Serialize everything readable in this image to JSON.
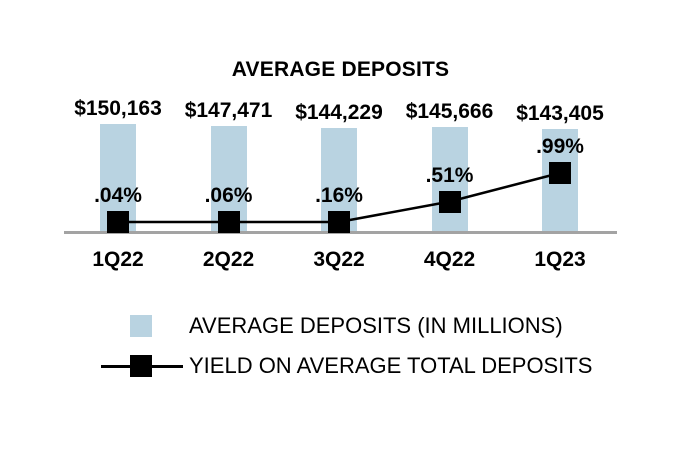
{
  "chart_data": {
    "type": "bar",
    "title": "AVERAGE DEPOSITS",
    "categories": [
      "1Q22",
      "2Q22",
      "3Q22",
      "4Q22",
      "1Q23"
    ],
    "series": [
      {
        "name": "AVERAGE DEPOSITS (IN MILLIONS)",
        "type": "bar",
        "color": "#b9d3e1",
        "values": [
          150163,
          147471,
          144229,
          145666,
          143405
        ],
        "labels": [
          "$150,163",
          "$147,471",
          "$144,229",
          "$145,666",
          "$143,405"
        ]
      },
      {
        "name": "YIELD ON AVERAGE TOTAL DEPOSITS",
        "type": "line",
        "marker": "square",
        "color": "#000000",
        "values": [
          0.04,
          0.06,
          0.16,
          0.51,
          0.99
        ],
        "labels": [
          ".04%",
          ".06%",
          ".16%",
          ".51%",
          ".99%"
        ]
      }
    ],
    "ylim": [
      0,
      150163
    ],
    "grid": false,
    "axis_color": "#a3a3a3",
    "legend_position": "bottom"
  },
  "legend": {
    "items": [
      {
        "label": "AVERAGE DEPOSITS (IN MILLIONS)",
        "swatch": "light-blue-square"
      },
      {
        "label": "YIELD ON AVERAGE TOTAL DEPOSITS",
        "swatch": "black-square-on-line"
      }
    ]
  }
}
